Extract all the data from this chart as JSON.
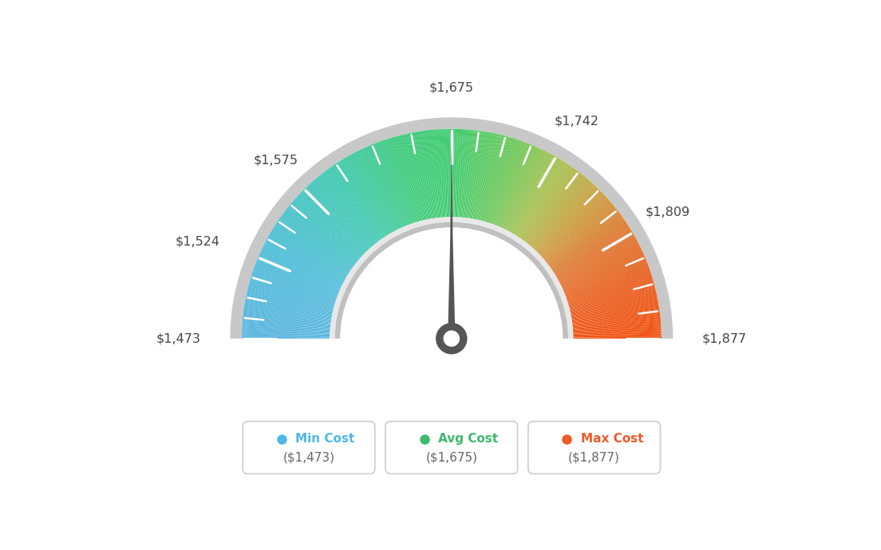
{
  "min_val": 1473,
  "max_val": 1877,
  "avg_val": 1675,
  "tick_labels": [
    "$1,473",
    "$1,524",
    "$1,575",
    "$1,675",
    "$1,742",
    "$1,809",
    "$1,877"
  ],
  "tick_values": [
    1473,
    1524,
    1575,
    1675,
    1742,
    1809,
    1877
  ],
  "minor_tick_count": 3,
  "gauge_color_stops": [
    [
      0.0,
      "#5ab4df"
    ],
    [
      0.15,
      "#4dbdd8"
    ],
    [
      0.3,
      "#3ec8b0"
    ],
    [
      0.42,
      "#3dca7a"
    ],
    [
      0.5,
      "#3ecb6e"
    ],
    [
      0.6,
      "#6dc85a"
    ],
    [
      0.68,
      "#a8c050"
    ],
    [
      0.75,
      "#c8a040"
    ],
    [
      0.82,
      "#de7830"
    ],
    [
      0.9,
      "#e86020"
    ],
    [
      1.0,
      "#f05010"
    ]
  ],
  "legend_min_text": "Min Cost",
  "legend_avg_text": "Avg Cost",
  "legend_max_text": "Max Cost",
  "legend_min_val": "($1,473)",
  "legend_avg_val": "($1,675)",
  "legend_max_val": "($1,877)",
  "legend_min_color": "#4db8e8",
  "legend_avg_color": "#3dba6e",
  "legend_max_color": "#f05a28",
  "background_color": "#ffffff",
  "needle_color": "#555555",
  "hub_color": "#555555"
}
